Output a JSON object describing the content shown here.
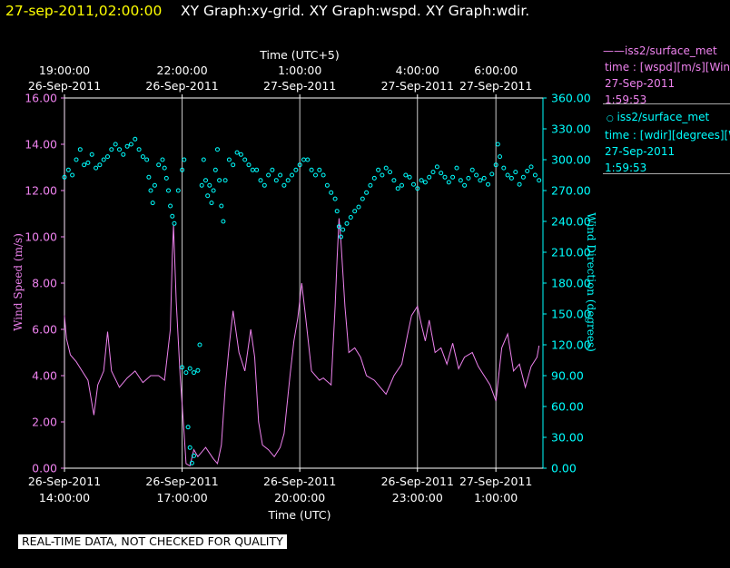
{
  "header": {
    "datetime": "27-sep-2011,02:00:00",
    "graphs": "XY Graph:xy-grid.  XY Graph:wspd.  XY Graph:wdir."
  },
  "legend": {
    "wspd": {
      "name": "iss2/surface_met",
      "line1": "time : [wspd][m/s][Wind",
      "date": "27-Sep-2011",
      "time": "1:59:53",
      "color": "#ee82ee"
    },
    "wdir": {
      "name": "iss2/surface_met",
      "line1": "time : [wdir][degrees][W",
      "date": "27-Sep-2011",
      "time": "1:59:53",
      "color": "#00ffff"
    }
  },
  "footer": {
    "quality_note": "REAL-TIME DATA, NOT CHECKED FOR QUALITY"
  },
  "chart_data": {
    "type": "line",
    "top_axis": {
      "title": "Time (UTC+5)",
      "ticks": [
        {
          "time": "19:00:00",
          "date": "26-Sep-2011",
          "utc_hours": 14
        },
        {
          "time": "22:00:00",
          "date": "26-Sep-2011",
          "utc_hours": 17
        },
        {
          "time": "1:00:00",
          "date": "27-Sep-2011",
          "utc_hours": 20
        },
        {
          "time": "4:00:00",
          "date": "27-Sep-2011",
          "utc_hours": 23
        },
        {
          "time": "6:00:00",
          "date": "27-Sep-2011",
          "utc_hours": 25
        }
      ]
    },
    "bottom_axis": {
      "title": "Time (UTC)",
      "ticks": [
        {
          "date": "26-Sep-2011",
          "time": "14:00:00",
          "utc_hours": 14
        },
        {
          "date": "26-Sep-2011",
          "time": "17:00:00",
          "utc_hours": 17
        },
        {
          "date": "26-Sep-2011",
          "time": "20:00:00",
          "utc_hours": 20
        },
        {
          "date": "26-Sep-2011",
          "time": "23:00:00",
          "utc_hours": 23
        },
        {
          "date": "27-Sep-2011",
          "time": "1:00:00",
          "utc_hours": 25
        }
      ],
      "range_hours": [
        14,
        26.2
      ]
    },
    "left_axis": {
      "title": "Wind Speed (m/s)",
      "ticks": [
        "0.00",
        "2.00",
        "4.00",
        "6.00",
        "8.00",
        "10.00",
        "12.00",
        "14.00",
        "16.00"
      ],
      "ylim": [
        0,
        16
      ],
      "color": "#ee82ee"
    },
    "right_axis": {
      "title": "Wind Direction (degrees)",
      "ticks": [
        "0.00",
        "30.00",
        "60.00",
        "90.00",
        "120.00",
        "150.00",
        "180.00",
        "210.00",
        "240.00",
        "270.00",
        "300.00",
        "330.00",
        "360.00"
      ],
      "ylim": [
        0,
        360
      ],
      "color": "#00ffff"
    },
    "series": [
      {
        "name": "iss2/surface_met wspd",
        "style": "line",
        "color": "#ee82ee",
        "points": [
          [
            14.0,
            6.6
          ],
          [
            14.05,
            5.6
          ],
          [
            14.15,
            4.9
          ],
          [
            14.3,
            4.6
          ],
          [
            14.45,
            4.2
          ],
          [
            14.6,
            3.8
          ],
          [
            14.75,
            2.3
          ],
          [
            14.85,
            3.6
          ],
          [
            15.0,
            4.2
          ],
          [
            15.1,
            5.9
          ],
          [
            15.2,
            4.2
          ],
          [
            15.4,
            3.5
          ],
          [
            15.6,
            3.9
          ],
          [
            15.8,
            4.2
          ],
          [
            16.0,
            3.7
          ],
          [
            16.2,
            4.0
          ],
          [
            16.4,
            4.0
          ],
          [
            16.55,
            3.8
          ],
          [
            16.7,
            6.0
          ],
          [
            16.75,
            9.2
          ],
          [
            16.78,
            10.5
          ],
          [
            16.85,
            7.2
          ],
          [
            16.95,
            4.0
          ],
          [
            17.05,
            1.5
          ],
          [
            17.1,
            0.2
          ],
          [
            17.2,
            0.1
          ],
          [
            17.3,
            0.8
          ],
          [
            17.4,
            0.5
          ],
          [
            17.6,
            0.9
          ],
          [
            17.8,
            0.4
          ],
          [
            17.9,
            0.2
          ],
          [
            18.0,
            1.0
          ],
          [
            18.1,
            3.5
          ],
          [
            18.2,
            5.3
          ],
          [
            18.3,
            6.8
          ],
          [
            18.45,
            5.0
          ],
          [
            18.6,
            4.2
          ],
          [
            18.75,
            6.0
          ],
          [
            18.85,
            4.8
          ],
          [
            18.95,
            2.0
          ],
          [
            19.05,
            1.0
          ],
          [
            19.2,
            0.8
          ],
          [
            19.35,
            0.5
          ],
          [
            19.5,
            0.9
          ],
          [
            19.6,
            1.5
          ],
          [
            19.75,
            4.0
          ],
          [
            19.85,
            5.5
          ],
          [
            19.95,
            6.5
          ],
          [
            20.05,
            8.0
          ],
          [
            20.15,
            6.5
          ],
          [
            20.3,
            4.2
          ],
          [
            20.5,
            3.8
          ],
          [
            20.6,
            3.9
          ],
          [
            20.8,
            3.6
          ],
          [
            20.9,
            7.0
          ],
          [
            20.95,
            9.0
          ],
          [
            21.0,
            10.8
          ],
          [
            21.05,
            9.8
          ],
          [
            21.15,
            7.0
          ],
          [
            21.25,
            5.0
          ],
          [
            21.4,
            5.2
          ],
          [
            21.55,
            4.8
          ],
          [
            21.7,
            4.0
          ],
          [
            21.9,
            3.8
          ],
          [
            22.05,
            3.5
          ],
          [
            22.2,
            3.2
          ],
          [
            22.4,
            4.0
          ],
          [
            22.6,
            4.5
          ],
          [
            22.75,
            5.8
          ],
          [
            22.85,
            6.6
          ],
          [
            23.0,
            7.0
          ],
          [
            23.1,
            6.2
          ],
          [
            23.2,
            5.5
          ],
          [
            23.3,
            6.4
          ],
          [
            23.45,
            5.0
          ],
          [
            23.6,
            5.2
          ],
          [
            23.75,
            4.5
          ],
          [
            23.9,
            5.4
          ],
          [
            24.05,
            4.3
          ],
          [
            24.2,
            4.8
          ],
          [
            24.4,
            5.0
          ],
          [
            24.55,
            4.4
          ],
          [
            24.7,
            4.0
          ],
          [
            24.85,
            3.6
          ],
          [
            25.0,
            2.9
          ],
          [
            25.15,
            5.2
          ],
          [
            25.3,
            5.8
          ],
          [
            25.45,
            4.2
          ],
          [
            25.6,
            4.5
          ],
          [
            25.75,
            3.5
          ],
          [
            25.9,
            4.4
          ],
          [
            26.05,
            4.8
          ],
          [
            26.1,
            5.3
          ]
        ]
      },
      {
        "name": "iss2/surface_met wdir",
        "style": "circles",
        "color": "#00ffff",
        "points": [
          [
            14.0,
            283
          ],
          [
            14.1,
            290
          ],
          [
            14.2,
            285
          ],
          [
            14.3,
            300
          ],
          [
            14.4,
            310
          ],
          [
            14.5,
            295
          ],
          [
            14.6,
            297
          ],
          [
            14.7,
            305
          ],
          [
            14.8,
            292
          ],
          [
            14.9,
            295
          ],
          [
            15.0,
            300
          ],
          [
            15.1,
            303
          ],
          [
            15.2,
            310
          ],
          [
            15.3,
            315
          ],
          [
            15.4,
            310
          ],
          [
            15.5,
            305
          ],
          [
            15.6,
            313
          ],
          [
            15.7,
            315
          ],
          [
            15.8,
            320
          ],
          [
            15.9,
            310
          ],
          [
            16.0,
            303
          ],
          [
            16.1,
            300
          ],
          [
            16.15,
            283
          ],
          [
            16.2,
            270
          ],
          [
            16.25,
            258
          ],
          [
            16.3,
            275
          ],
          [
            16.4,
            295
          ],
          [
            16.5,
            300
          ],
          [
            16.55,
            292
          ],
          [
            16.6,
            282
          ],
          [
            16.65,
            270
          ],
          [
            16.7,
            255
          ],
          [
            16.75,
            245
          ],
          [
            16.8,
            238
          ],
          [
            16.9,
            270
          ],
          [
            17.0,
            290
          ],
          [
            17.05,
            300
          ],
          [
            17.0,
            98
          ],
          [
            17.1,
            93
          ],
          [
            17.2,
            97
          ],
          [
            17.3,
            93
          ],
          [
            17.4,
            95
          ],
          [
            17.15,
            40
          ],
          [
            17.2,
            20
          ],
          [
            17.25,
            5
          ],
          [
            17.3,
            12
          ],
          [
            17.45,
            120
          ],
          [
            17.5,
            275
          ],
          [
            17.55,
            300
          ],
          [
            17.6,
            280
          ],
          [
            17.65,
            265
          ],
          [
            17.7,
            275
          ],
          [
            17.75,
            258
          ],
          [
            17.8,
            270
          ],
          [
            17.85,
            290
          ],
          [
            17.9,
            310
          ],
          [
            17.95,
            280
          ],
          [
            18.0,
            255
          ],
          [
            18.05,
            240
          ],
          [
            18.1,
            280
          ],
          [
            18.2,
            300
          ],
          [
            18.3,
            295
          ],
          [
            18.4,
            307
          ],
          [
            18.5,
            305
          ],
          [
            18.6,
            300
          ],
          [
            18.7,
            295
          ],
          [
            18.8,
            290
          ],
          [
            18.9,
            290
          ],
          [
            19.0,
            280
          ],
          [
            19.1,
            275
          ],
          [
            19.2,
            285
          ],
          [
            19.3,
            290
          ],
          [
            19.4,
            280
          ],
          [
            19.5,
            285
          ],
          [
            19.6,
            275
          ],
          [
            19.7,
            280
          ],
          [
            19.8,
            285
          ],
          [
            19.9,
            290
          ],
          [
            20.0,
            295
          ],
          [
            20.1,
            300
          ],
          [
            20.2,
            300
          ],
          [
            20.3,
            290
          ],
          [
            20.4,
            285
          ],
          [
            20.5,
            290
          ],
          [
            20.6,
            285
          ],
          [
            20.7,
            275
          ],
          [
            20.8,
            268
          ],
          [
            20.9,
            262
          ],
          [
            20.95,
            250
          ],
          [
            21.0,
            235
          ],
          [
            21.05,
            225
          ],
          [
            21.1,
            232
          ],
          [
            21.2,
            238
          ],
          [
            21.3,
            244
          ],
          [
            21.4,
            250
          ],
          [
            21.5,
            254
          ],
          [
            21.6,
            262
          ],
          [
            21.7,
            268
          ],
          [
            21.8,
            275
          ],
          [
            21.9,
            282
          ],
          [
            22.0,
            290
          ],
          [
            22.1,
            285
          ],
          [
            22.2,
            292
          ],
          [
            22.3,
            288
          ],
          [
            22.4,
            280
          ],
          [
            22.5,
            272
          ],
          [
            22.6,
            275
          ],
          [
            22.7,
            285
          ],
          [
            22.8,
            283
          ],
          [
            22.9,
            276
          ],
          [
            23.0,
            272
          ],
          [
            23.1,
            280
          ],
          [
            23.2,
            278
          ],
          [
            23.3,
            283
          ],
          [
            23.4,
            288
          ],
          [
            23.5,
            293
          ],
          [
            23.6,
            287
          ],
          [
            23.7,
            283
          ],
          [
            23.8,
            278
          ],
          [
            23.9,
            283
          ],
          [
            24.0,
            292
          ],
          [
            24.1,
            280
          ],
          [
            24.2,
            275
          ],
          [
            24.3,
            282
          ],
          [
            24.4,
            290
          ],
          [
            24.5,
            285
          ],
          [
            24.6,
            280
          ],
          [
            24.7,
            282
          ],
          [
            24.8,
            276
          ],
          [
            24.9,
            286
          ],
          [
            25.0,
            295
          ],
          [
            25.05,
            315
          ],
          [
            25.1,
            303
          ],
          [
            25.2,
            292
          ],
          [
            25.3,
            285
          ],
          [
            25.4,
            282
          ],
          [
            25.5,
            288
          ],
          [
            25.6,
            276
          ],
          [
            25.7,
            283
          ],
          [
            25.8,
            289
          ],
          [
            25.9,
            293
          ],
          [
            26.0,
            285
          ],
          [
            26.1,
            280
          ]
        ]
      }
    ]
  }
}
